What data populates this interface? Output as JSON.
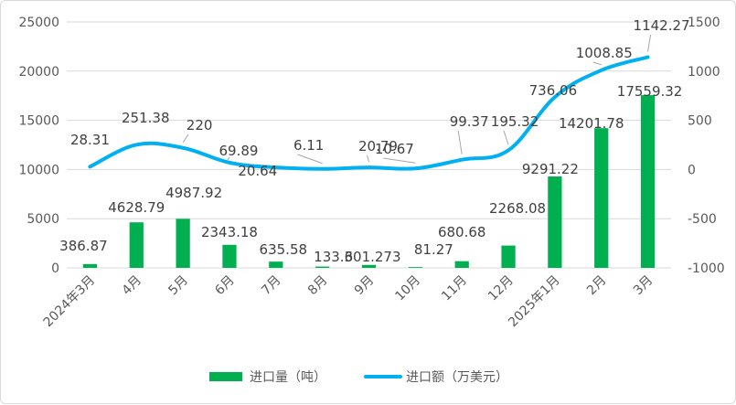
{
  "chart_data": {
    "type": "bar",
    "categories": [
      "2024年3月",
      "4月",
      "5月",
      "6月",
      "7月",
      "8月",
      "9月",
      "10月",
      "11月",
      "12月",
      "2025年1月",
      "2月",
      "3月"
    ],
    "series": [
      {
        "name": "进口量（吨）",
        "type": "bar",
        "axis": "left",
        "color": "#00b050",
        "values": [
          386.87,
          4628.79,
          4987.92,
          2343.18,
          635.58,
          133.6,
          301.273,
          81.27,
          680.68,
          2268.08,
          9291.22,
          14201.78,
          17559.32
        ],
        "labels": [
          "386.87",
          "4628.79",
          "4987.92",
          "2343.18",
          "635.58",
          "133.6",
          "301.273",
          "81.27",
          "680.68",
          "2268.08",
          "9291.22",
          "14201.78",
          "17559.32"
        ]
      },
      {
        "name": "进口额（万美元）",
        "type": "line",
        "axis": "right",
        "color": "#00b0f0",
        "values": [
          28.31,
          251.38,
          220,
          69.89,
          20.64,
          6.11,
          20.79,
          10.67,
          99.37,
          195.32,
          736.06,
          1008.85,
          1142.27
        ],
        "labels": [
          "28.31",
          "251.38",
          "220",
          "69.89",
          "20.64",
          "6.11",
          "20.79",
          "10.67",
          "99.37",
          "195.32",
          "736.06",
          "1008.85",
          "1142.27"
        ]
      }
    ],
    "left_axis": {
      "min": 0,
      "max": 25000,
      "step": 5000,
      "ticks": [
        "0",
        "5000",
        "10000",
        "15000",
        "20000",
        "25000"
      ]
    },
    "right_axis": {
      "min": -1000,
      "max": 1500,
      "step": 500,
      "ticks": [
        "-1000",
        "-500",
        "0",
        "500",
        "1000",
        "1500"
      ]
    },
    "grid": true,
    "legend_position": "bottom"
  }
}
